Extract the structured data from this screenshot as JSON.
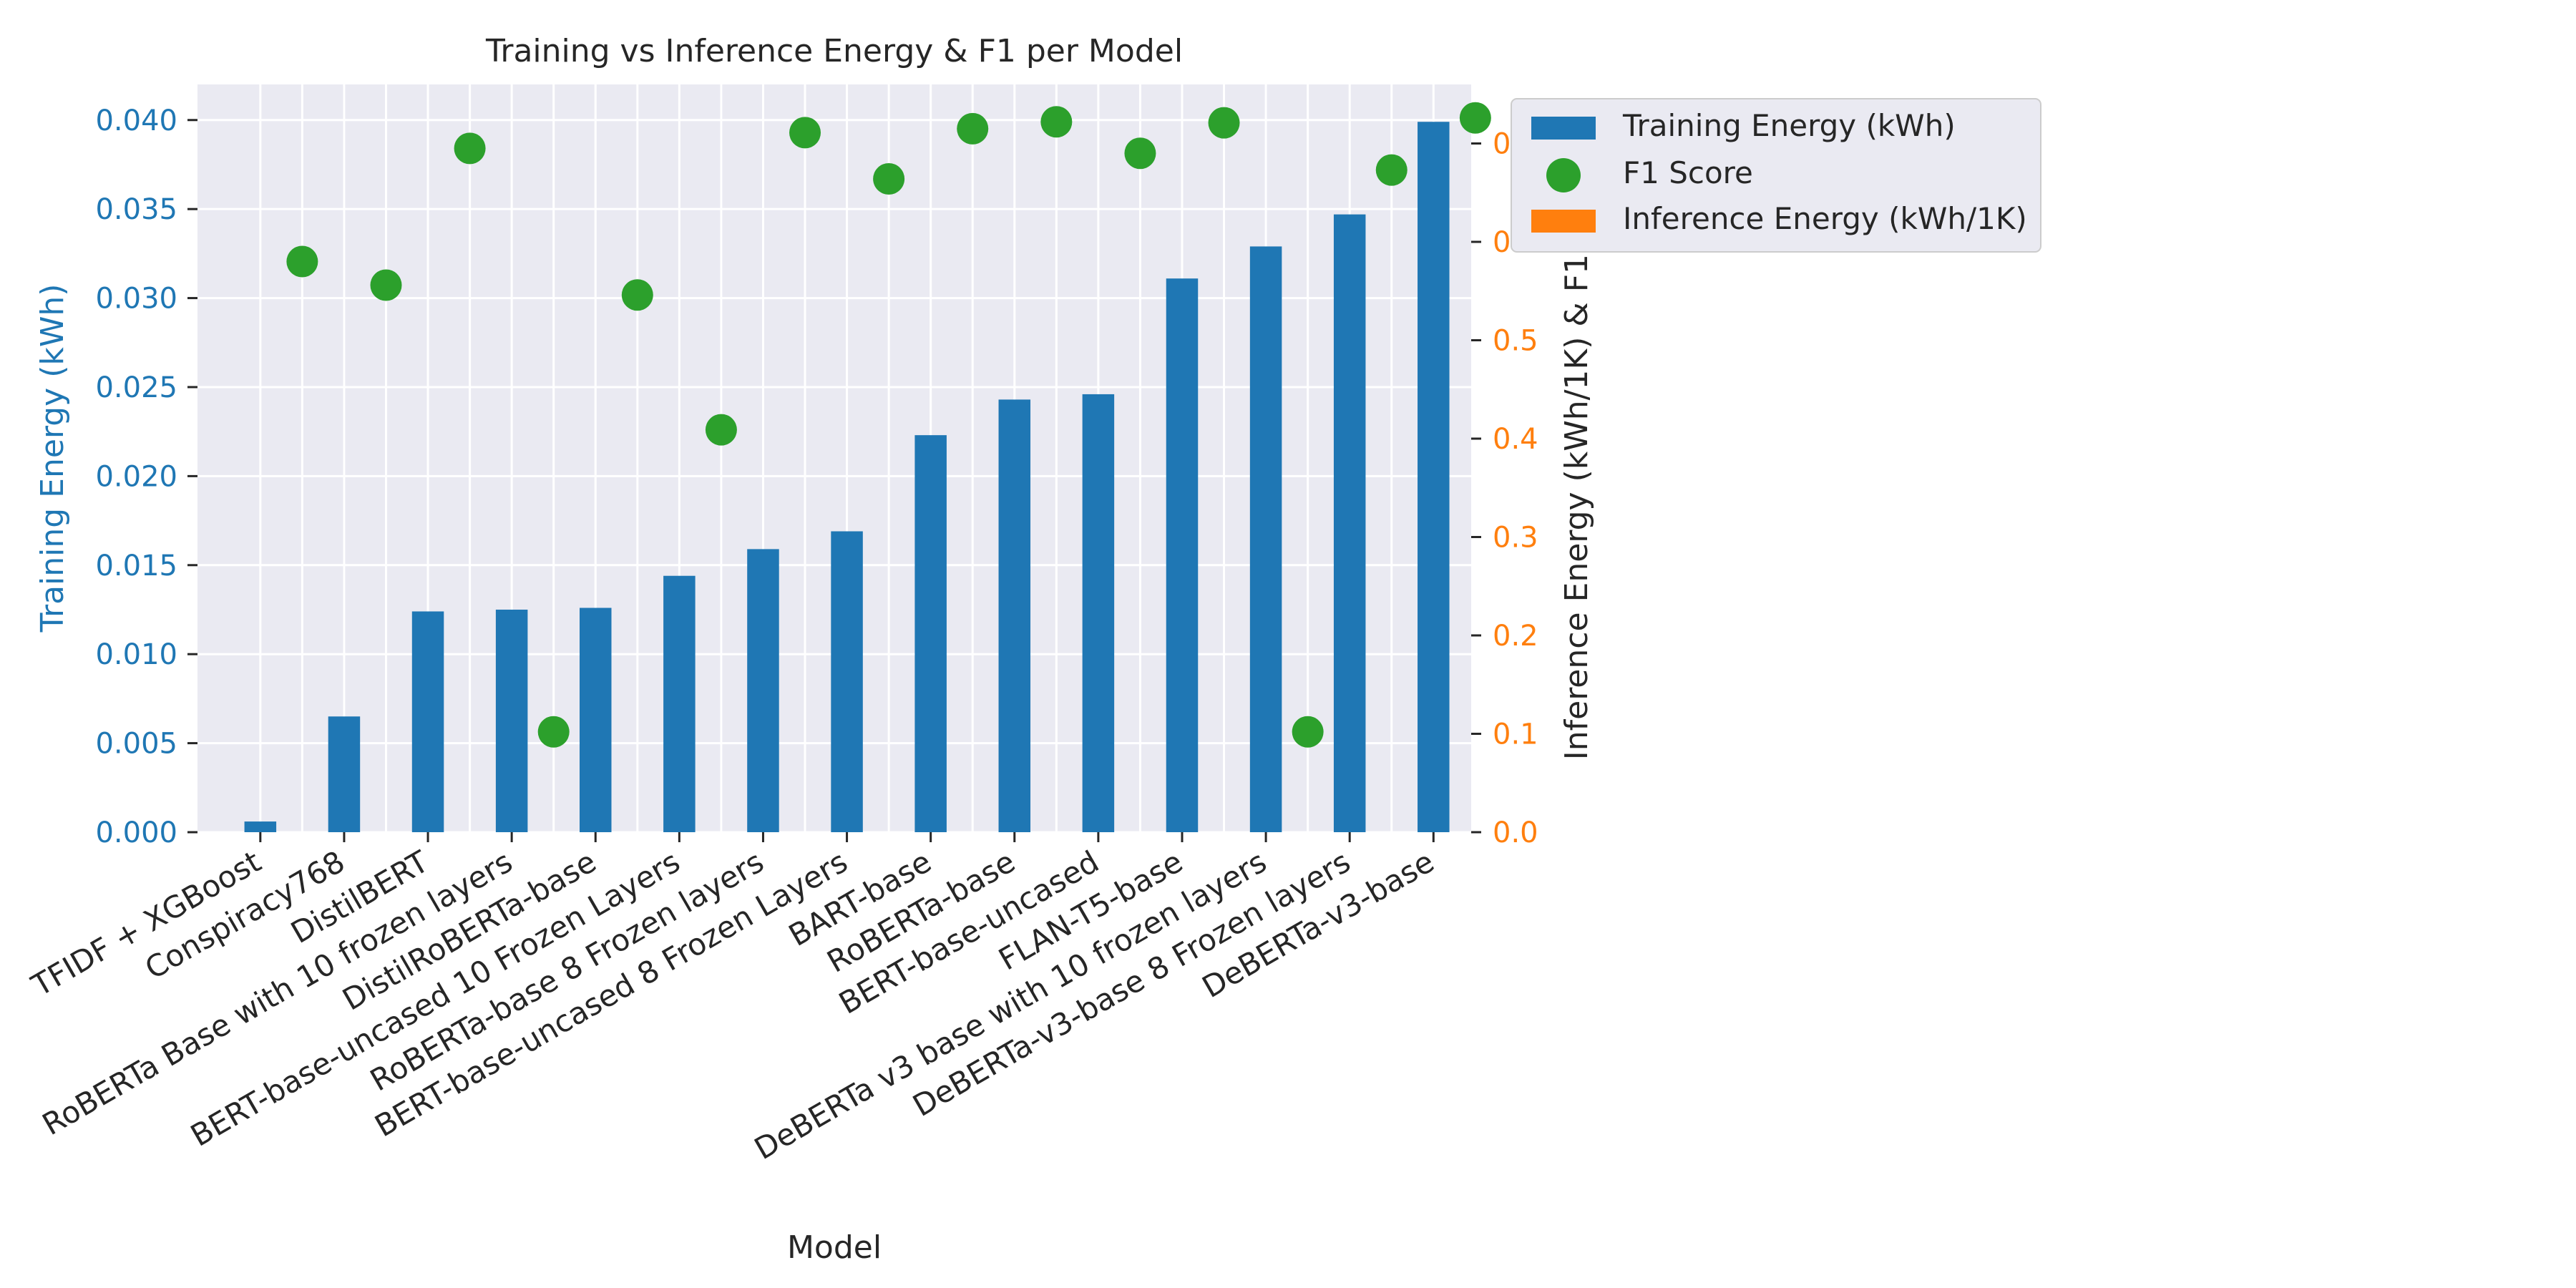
{
  "chart_data": {
    "type": "bar",
    "title": "Training vs Inference Energy & F1 per Model",
    "xlabel": "Model",
    "ylabel_left": "Training Energy (kWh)",
    "ylabel_right": "Inference Energy (kWh/1K) & F1 Score",
    "ylim_left": [
      0,
      0.042
    ],
    "ylim_right": [
      0,
      0.76
    ],
    "yticks_left": [
      "0.000",
      "0.005",
      "0.010",
      "0.015",
      "0.020",
      "0.025",
      "0.030",
      "0.035",
      "0.040"
    ],
    "yticks_right": [
      "0.0",
      "0.1",
      "0.2",
      "0.3",
      "0.4",
      "0.5",
      "0.6",
      "0.7"
    ],
    "grid": true,
    "legend_position": "outside top-right",
    "categories": [
      "TFIDF + XGBoost",
      "Conspiracy768",
      "DistilBERT",
      "RoBERTa Base with 10 frozen layers",
      "DistilRoBERTa-base",
      "BERT-base-uncased 10 Frozen Layers",
      "RoBERTa-base 8 Frozen layers",
      "BERT-base-uncased 8 Frozen Layers",
      "BART-base",
      "RoBERTa-base",
      "BERT-base-uncased",
      "FLAN-T5-base",
      "DeBERTa v3 base with 10 frozen layers",
      "DeBERTa-v3-base 8 Frozen layers",
      "DeBERTa-v3-base"
    ],
    "series": [
      {
        "name": "Training Energy (kWh)",
        "axis": "left",
        "kind": "bar",
        "color": "#1f77b4",
        "values": [
          0.0006,
          0.0065,
          0.0124,
          0.0125,
          0.0126,
          0.0144,
          0.0159,
          0.0169,
          0.0223,
          0.0243,
          0.0246,
          0.0311,
          0.0329,
          0.0347,
          0.0399
        ]
      },
      {
        "name": "F1 Score",
        "axis": "right",
        "kind": "scatter",
        "color": "#2ca02c",
        "values": [
          0.58,
          0.556,
          0.695,
          0.102,
          0.546,
          0.409,
          0.711,
          0.664,
          0.715,
          0.722,
          0.69,
          0.721,
          0.102,
          0.673,
          0.726
        ]
      },
      {
        "name": "Inference Energy (kWh/1K)",
        "axis": "right",
        "kind": "bar",
        "color": "#ff7f0e",
        "values": [
          0,
          0,
          0,
          0,
          0,
          0,
          0,
          0,
          0,
          0,
          0,
          0,
          0,
          0,
          0
        ]
      }
    ]
  },
  "colors": {
    "plot_background": "#eaeaf2",
    "grid": "#ffffff",
    "left_axis": "#1f77b4",
    "right_axis": "#ff7f0e",
    "text": "#262626"
  }
}
